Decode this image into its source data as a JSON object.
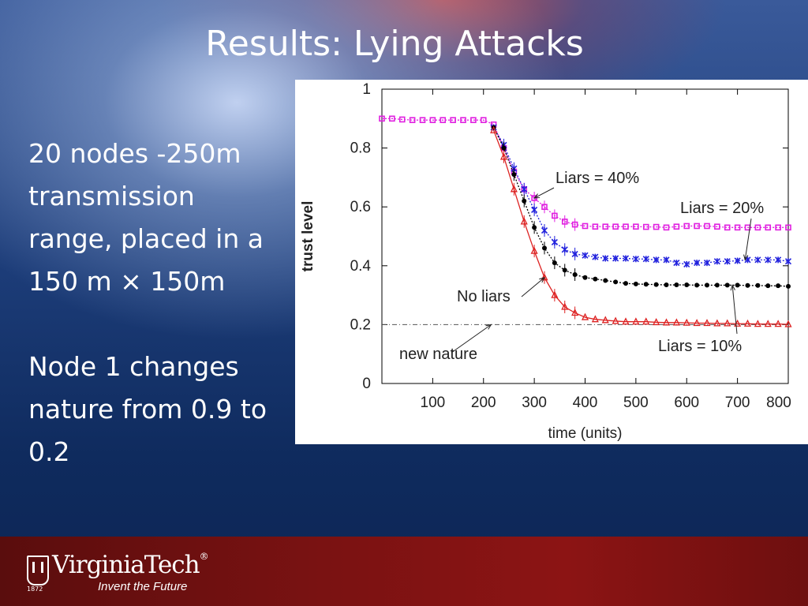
{
  "slide": {
    "title": "Results: Lying Attacks",
    "body": {
      "para1": [
        "20 nodes -250m",
        "transmission",
        "range, placed in a",
        "150 m × 150m"
      ],
      "para2": [
        "Node 1 changes",
        "nature from 0.9 to",
        "0.2"
      ]
    },
    "footer": {
      "logo_name": "VirginiaTech",
      "logo_year": "1872",
      "tagline": "Invent the Future",
      "mark": "®"
    }
  },
  "chart_data": {
    "type": "line",
    "xlabel": "time (units)",
    "ylabel": "trust level",
    "xlim": [
      0,
      800
    ],
    "ylim": [
      0,
      1
    ],
    "xticks": [
      100,
      200,
      300,
      400,
      500,
      600,
      700,
      800
    ],
    "yticks": [
      0,
      0.2,
      0.4,
      0.6,
      0.8,
      1
    ],
    "ytick_labels": [
      "0",
      "0.2",
      "0.4",
      "0.6",
      "0.8",
      "1"
    ],
    "grid": false,
    "reference_line": {
      "y": 0.2,
      "label": "new nature"
    },
    "series": [
      {
        "name": "Liars = 40%",
        "color": "#e020e0",
        "marker": "square",
        "x": [
          0,
          20,
          40,
          60,
          80,
          100,
          120,
          140,
          160,
          180,
          200,
          220,
          240,
          260,
          280,
          300,
          320,
          340,
          360,
          380,
          400,
          420,
          440,
          460,
          480,
          500,
          520,
          540,
          560,
          580,
          600,
          620,
          640,
          660,
          680,
          700,
          720,
          740,
          760,
          780,
          800
        ],
        "y": [
          0.9,
          0.9,
          0.897,
          0.895,
          0.895,
          0.895,
          0.895,
          0.895,
          0.895,
          0.895,
          0.895,
          0.88,
          0.8,
          0.72,
          0.66,
          0.63,
          0.6,
          0.57,
          0.55,
          0.54,
          0.535,
          0.533,
          0.533,
          0.533,
          0.533,
          0.533,
          0.532,
          0.532,
          0.53,
          0.533,
          0.535,
          0.535,
          0.535,
          0.533,
          0.53,
          0.53,
          0.53,
          0.53,
          0.53,
          0.53,
          0.53
        ]
      },
      {
        "name": "Liars = 20%",
        "color": "#2222dd",
        "marker": "star",
        "x": [
          220,
          240,
          260,
          280,
          300,
          320,
          340,
          360,
          380,
          400,
          420,
          440,
          460,
          480,
          500,
          520,
          540,
          560,
          580,
          600,
          620,
          640,
          660,
          680,
          700,
          720,
          740,
          760,
          780,
          800
        ],
        "y": [
          0.87,
          0.81,
          0.73,
          0.66,
          0.59,
          0.52,
          0.48,
          0.455,
          0.44,
          0.435,
          0.43,
          0.425,
          0.425,
          0.425,
          0.423,
          0.423,
          0.42,
          0.42,
          0.41,
          0.405,
          0.41,
          0.41,
          0.415,
          0.415,
          0.417,
          0.42,
          0.42,
          0.42,
          0.42,
          0.415
        ]
      },
      {
        "name": "Liars = 10%",
        "color": "#000000",
        "marker": "circle",
        "x": [
          220,
          240,
          260,
          280,
          300,
          320,
          340,
          360,
          380,
          400,
          420,
          440,
          460,
          480,
          500,
          520,
          540,
          560,
          580,
          600,
          620,
          640,
          660,
          680,
          700,
          720,
          740,
          760,
          780,
          800
        ],
        "y": [
          0.87,
          0.8,
          0.71,
          0.62,
          0.53,
          0.46,
          0.41,
          0.385,
          0.37,
          0.36,
          0.355,
          0.35,
          0.345,
          0.34,
          0.338,
          0.337,
          0.336,
          0.335,
          0.335,
          0.335,
          0.334,
          0.334,
          0.334,
          0.334,
          0.334,
          0.333,
          0.333,
          0.332,
          0.332,
          0.33
        ]
      },
      {
        "name": "No liars",
        "color": "#dd2222",
        "marker": "triangle",
        "x": [
          220,
          240,
          260,
          280,
          300,
          320,
          340,
          360,
          380,
          400,
          420,
          440,
          460,
          480,
          500,
          520,
          540,
          560,
          580,
          600,
          620,
          640,
          660,
          680,
          700,
          720,
          740,
          760,
          780,
          800
        ],
        "y": [
          0.86,
          0.77,
          0.66,
          0.55,
          0.45,
          0.36,
          0.3,
          0.26,
          0.24,
          0.225,
          0.218,
          0.215,
          0.212,
          0.21,
          0.21,
          0.21,
          0.208,
          0.207,
          0.207,
          0.206,
          0.205,
          0.205,
          0.204,
          0.204,
          0.203,
          0.203,
          0.202,
          0.202,
          0.202,
          0.201
        ]
      }
    ],
    "annotations": [
      {
        "text": "Liars = 40%",
        "series": "Liars = 40%",
        "point_x": 300
      },
      {
        "text": "Liars = 20%",
        "series": "Liars = 20%",
        "point_x": 715
      },
      {
        "text": "No liars",
        "series": "No liars",
        "point_x": 320
      },
      {
        "text": "Liars = 10%",
        "series": "Liars = 10%",
        "point_x": 690
      },
      {
        "text": "new nature",
        "series": "reference",
        "point_x": 215
      }
    ]
  }
}
